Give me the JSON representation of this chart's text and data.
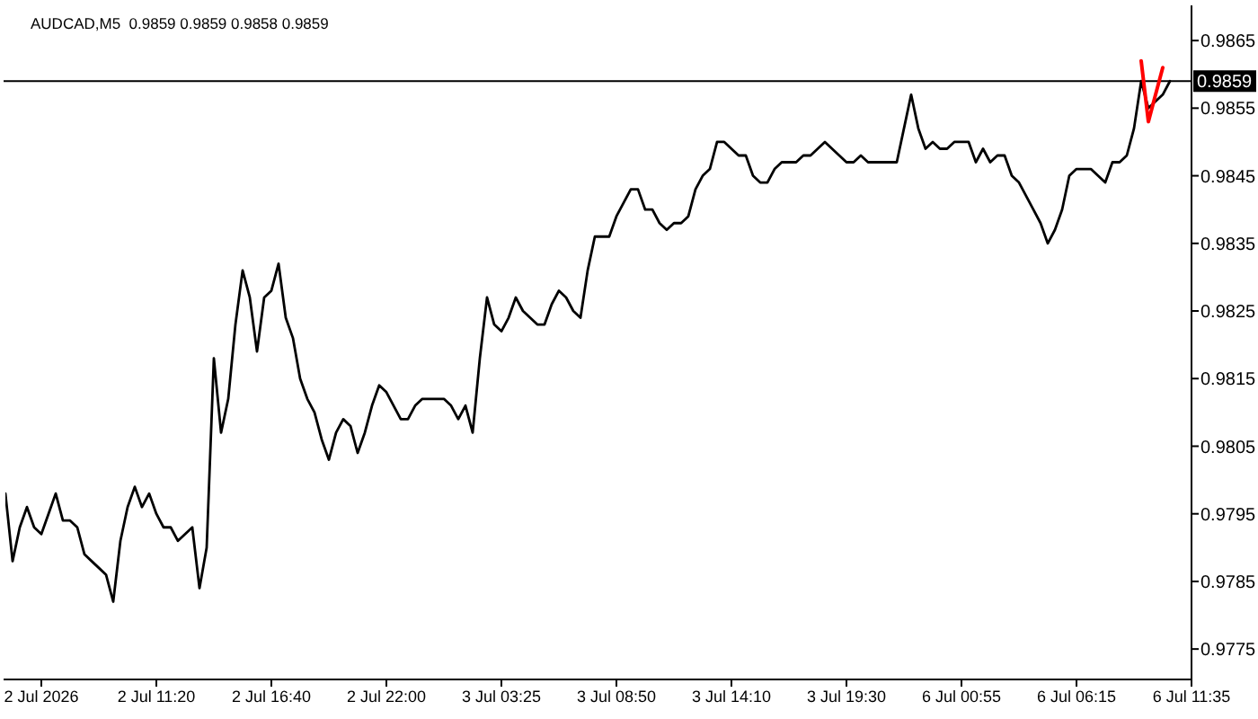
{
  "chart_data": {
    "type": "line",
    "title": "AUDCAD,M5  0.9859 0.9859 0.9858 0.9859",
    "categories": [
      null,
      null,
      null,
      null,
      null,
      "2 Jul 2026",
      null,
      null,
      null,
      null,
      null,
      null,
      null,
      null,
      null,
      null,
      null,
      null,
      null,
      null,
      null,
      "2 Jul 11:20",
      null,
      null,
      null,
      null,
      null,
      null,
      null,
      null,
      null,
      null,
      null,
      null,
      null,
      null,
      null,
      "2 Jul 16:40",
      null,
      null,
      null,
      null,
      null,
      null,
      null,
      null,
      null,
      null,
      null,
      null,
      null,
      null,
      null,
      "2 Jul 22:00",
      null,
      null,
      null,
      null,
      null,
      null,
      null,
      null,
      null,
      null,
      null,
      null,
      null,
      null,
      null,
      "3 Jul 03:25",
      null,
      null,
      null,
      null,
      null,
      null,
      null,
      null,
      null,
      null,
      null,
      null,
      null,
      null,
      null,
      "3 Jul 08:50",
      null,
      null,
      null,
      null,
      null,
      null,
      null,
      null,
      null,
      null,
      null,
      null,
      null,
      null,
      null,
      "3 Jul 14:10",
      null,
      null,
      null,
      null,
      null,
      null,
      null,
      null,
      null,
      null,
      null,
      null,
      null,
      null,
      null,
      "3 Jul 19:30",
      null,
      null,
      null,
      null,
      null,
      null,
      null,
      null,
      null,
      null,
      null,
      null,
      null,
      null,
      null,
      "6 Jul 00:55",
      null,
      null,
      null,
      null,
      null,
      null,
      null,
      null,
      null,
      null,
      null,
      null,
      null,
      null,
      null,
      "6 Jul 06:15",
      null,
      null,
      null,
      null,
      null,
      null,
      null,
      null,
      null,
      null,
      null,
      null,
      null,
      null,
      null,
      "6 Jul 11:35"
    ],
    "series": [
      {
        "color": "#000000",
        "values": [
          0.9798,
          0.9788,
          0.9793,
          0.9796,
          0.9793,
          0.9792,
          0.9795,
          0.9798,
          0.9794,
          0.9794,
          0.9793,
          0.9789,
          0.9788,
          0.9787,
          0.9786,
          0.9782,
          0.9791,
          0.9796,
          0.9799,
          0.9796,
          0.9798,
          0.9795,
          0.9793,
          0.9793,
          0.9791,
          0.9792,
          0.9793,
          0.9784,
          0.979,
          0.9818,
          0.9807,
          0.9812,
          0.9823,
          0.9831,
          0.9827,
          0.9819,
          0.9827,
          0.9828,
          0.9832,
          0.9824,
          0.9821,
          0.9815,
          0.9812,
          0.981,
          0.9806,
          0.9803,
          0.9807,
          0.9809,
          0.9808,
          0.9804,
          0.9807,
          0.9811,
          0.9814,
          0.9813,
          0.9811,
          0.9809,
          0.9809,
          0.9811,
          0.9812,
          0.9812,
          0.9812,
          0.9812,
          0.9811,
          0.9809,
          0.9811,
          0.9807,
          0.9818,
          0.9827,
          0.9823,
          0.9822,
          0.9824,
          0.9827,
          0.9825,
          0.9824,
          0.9823,
          0.9823,
          0.9826,
          0.9828,
          0.9827,
          0.9825,
          0.9824,
          0.9831,
          0.9836,
          0.9836,
          0.9836,
          0.9839,
          0.9841,
          0.9843,
          0.9843,
          0.984,
          0.984,
          0.9838,
          0.9837,
          0.9838,
          0.9838,
          0.9839,
          0.9843,
          0.9845,
          0.9846,
          0.985,
          0.985,
          0.9849,
          0.9848,
          0.9848,
          0.9845,
          0.9844,
          0.9844,
          0.9846,
          0.9847,
          0.9847,
          0.9847,
          0.9848,
          0.9848,
          0.9849,
          0.985,
          0.9849,
          0.9848,
          0.9847,
          0.9847,
          0.9848,
          0.9847,
          0.9847,
          0.9847,
          0.9847,
          0.9847,
          0.9852,
          0.9857,
          0.9852,
          0.9849,
          0.985,
          0.9849,
          0.9849,
          0.985,
          0.985,
          0.985,
          0.9847,
          0.9849,
          0.9847,
          0.9848,
          0.9848,
          0.9845,
          0.9844,
          0.9842,
          0.984,
          0.9838,
          0.9835,
          0.9837,
          0.984,
          0.9845,
          0.9846,
          0.9846,
          0.9846,
          0.9845,
          0.9844,
          0.9847,
          0.9847,
          0.9848,
          0.9852,
          0.9859,
          0.9855,
          0.9856,
          0.9857,
          0.9859,
          null,
          null,
          null
        ]
      },
      {
        "color": "#ff0000",
        "values": [
          null,
          null,
          null,
          null,
          null,
          null,
          null,
          null,
          null,
          null,
          null,
          null,
          null,
          null,
          null,
          null,
          null,
          null,
          null,
          null,
          null,
          null,
          null,
          null,
          null,
          null,
          null,
          null,
          null,
          null,
          null,
          null,
          null,
          null,
          null,
          null,
          null,
          null,
          null,
          null,
          null,
          null,
          null,
          null,
          null,
          null,
          null,
          null,
          null,
          null,
          null,
          null,
          null,
          null,
          null,
          null,
          null,
          null,
          null,
          null,
          null,
          null,
          null,
          null,
          null,
          null,
          null,
          null,
          null,
          null,
          null,
          null,
          null,
          null,
          null,
          null,
          null,
          null,
          null,
          null,
          null,
          null,
          null,
          null,
          null,
          null,
          null,
          null,
          null,
          null,
          null,
          null,
          null,
          null,
          null,
          null,
          null,
          null,
          null,
          null,
          null,
          null,
          null,
          null,
          null,
          null,
          null,
          null,
          null,
          null,
          null,
          null,
          null,
          null,
          null,
          null,
          null,
          null,
          null,
          null,
          null,
          null,
          null,
          null,
          null,
          null,
          null,
          null,
          null,
          null,
          null,
          null,
          null,
          null,
          null,
          null,
          null,
          null,
          null,
          null,
          null,
          null,
          null,
          null,
          null,
          null,
          null,
          null,
          null,
          null,
          null,
          null,
          null,
          null,
          null,
          null,
          null,
          null,
          0.9862,
          0.9853,
          0.9857,
          0.9861,
          null,
          null,
          null,
          null
        ]
      }
    ],
    "ylim": [
      0.97705,
      0.98702
    ],
    "yticks": [
      0.9775,
      0.9785,
      0.9795,
      0.9805,
      0.9815,
      0.9825,
      0.9835,
      0.9845,
      0.9855,
      0.9865
    ],
    "ref_lines": [
      {
        "axis": "y",
        "value": 0.9859,
        "label": "0.9859",
        "color": "#000000"
      }
    ]
  }
}
